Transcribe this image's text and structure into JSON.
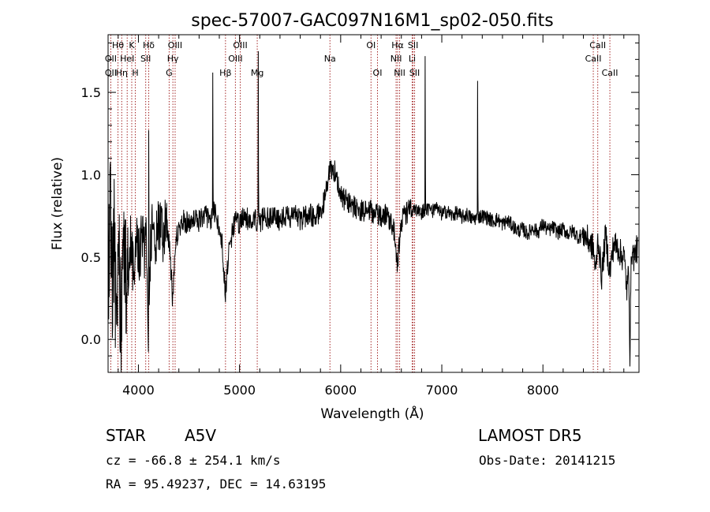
{
  "chart_data": {
    "type": "line",
    "title": "spec-57007-GAC097N16M1_sp02-050.fits",
    "xlabel": "Wavelength (Å)",
    "ylabel": "Flux (relative)",
    "xlim": [
      3700,
      8950
    ],
    "ylim": [
      -0.2,
      1.85
    ],
    "xticks": [
      4000,
      5000,
      6000,
      7000,
      8000
    ],
    "yticks": [
      0.0,
      0.5,
      1.0,
      1.5
    ],
    "ytick_labels": [
      "0.0",
      "0.5",
      "1.0",
      "1.5"
    ],
    "grid": false,
    "line_color": "#000000",
    "marker_color": "#a52a2a",
    "anchors": [
      [
        3700,
        0.35
      ],
      [
        3720,
        0.8
      ],
      [
        3740,
        0.3
      ],
      [
        3760,
        0.65
      ],
      [
        3780,
        0.05
      ],
      [
        3800,
        0.55
      ],
      [
        3830,
        0.15
      ],
      [
        3860,
        0.6
      ],
      [
        3890,
        0.28
      ],
      [
        3920,
        0.62
      ],
      [
        3950,
        0.4
      ],
      [
        3980,
        0.66
      ],
      [
        4010,
        0.5
      ],
      [
        4040,
        0.68
      ],
      [
        4060,
        0.55
      ],
      [
        4080,
        0.62
      ],
      [
        4101,
        -0.06
      ],
      [
        4120,
        0.55
      ],
      [
        4140,
        0.68
      ],
      [
        4160,
        0.58
      ],
      [
        4180,
        0.62
      ],
      [
        4200,
        0.7
      ],
      [
        4240,
        0.62
      ],
      [
        4280,
        0.7
      ],
      [
        4310,
        0.55
      ],
      [
        4340,
        0.22
      ],
      [
        4370,
        0.6
      ],
      [
        4400,
        0.68
      ],
      [
        4450,
        0.72
      ],
      [
        4500,
        0.7
      ],
      [
        4550,
        0.75
      ],
      [
        4600,
        0.72
      ],
      [
        4650,
        0.76
      ],
      [
        4700,
        0.72
      ],
      [
        4750,
        0.78
      ],
      [
        4800,
        0.66
      ],
      [
        4830,
        0.56
      ],
      [
        4861,
        0.27
      ],
      [
        4890,
        0.5
      ],
      [
        4920,
        0.62
      ],
      [
        4960,
        0.73
      ],
      [
        5000,
        0.7
      ],
      [
        5050,
        0.75
      ],
      [
        5100,
        0.72
      ],
      [
        5150,
        0.74
      ],
      [
        5200,
        0.7
      ],
      [
        5250,
        0.76
      ],
      [
        5300,
        0.73
      ],
      [
        5350,
        0.77
      ],
      [
        5400,
        0.72
      ],
      [
        5450,
        0.76
      ],
      [
        5500,
        0.73
      ],
      [
        5550,
        0.77
      ],
      [
        5600,
        0.72
      ],
      [
        5650,
        0.75
      ],
      [
        5700,
        0.76
      ],
      [
        5750,
        0.74
      ],
      [
        5800,
        0.78
      ],
      [
        5850,
        0.86
      ],
      [
        5880,
        1.01
      ],
      [
        5910,
        1.04
      ],
      [
        5940,
        1.02
      ],
      [
        5970,
        0.96
      ],
      [
        6000,
        0.88
      ],
      [
        6050,
        0.84
      ],
      [
        6100,
        0.82
      ],
      [
        6150,
        0.8
      ],
      [
        6200,
        0.78
      ],
      [
        6250,
        0.77
      ],
      [
        6300,
        0.78
      ],
      [
        6350,
        0.76
      ],
      [
        6400,
        0.75
      ],
      [
        6450,
        0.76
      ],
      [
        6500,
        0.72
      ],
      [
        6530,
        0.66
      ],
      [
        6563,
        0.45
      ],
      [
        6590,
        0.68
      ],
      [
        6620,
        0.74
      ],
      [
        6650,
        0.77
      ],
      [
        6700,
        0.79
      ],
      [
        6750,
        0.78
      ],
      [
        6800,
        0.77
      ],
      [
        6850,
        0.8
      ],
      [
        6900,
        0.78
      ],
      [
        6950,
        0.79
      ],
      [
        7000,
        0.76
      ],
      [
        7050,
        0.78
      ],
      [
        7100,
        0.75
      ],
      [
        7150,
        0.77
      ],
      [
        7200,
        0.74
      ],
      [
        7250,
        0.76
      ],
      [
        7300,
        0.73
      ],
      [
        7400,
        0.75
      ],
      [
        7450,
        0.74
      ],
      [
        7500,
        0.72
      ],
      [
        7550,
        0.73
      ],
      [
        7600,
        0.7
      ],
      [
        7650,
        0.72
      ],
      [
        7700,
        0.69
      ],
      [
        7750,
        0.66
      ],
      [
        7800,
        0.67
      ],
      [
        7850,
        0.64
      ],
      [
        7900,
        0.68
      ],
      [
        7950,
        0.65
      ],
      [
        8000,
        0.7
      ],
      [
        8050,
        0.66
      ],
      [
        8100,
        0.68
      ],
      [
        8150,
        0.65
      ],
      [
        8200,
        0.67
      ],
      [
        8250,
        0.64
      ],
      [
        8300,
        0.66
      ],
      [
        8350,
        0.62
      ],
      [
        8400,
        0.64
      ],
      [
        8450,
        0.6
      ],
      [
        8500,
        0.55
      ],
      [
        8520,
        0.4
      ],
      [
        8545,
        0.62
      ],
      [
        8580,
        0.38
      ],
      [
        8620,
        0.64
      ],
      [
        8660,
        0.4
      ],
      [
        8700,
        0.58
      ],
      [
        8750,
        0.55
      ],
      [
        8780,
        0.5
      ],
      [
        8800,
        0.52
      ],
      [
        8830,
        0.3
      ],
      [
        8850,
        0.42
      ],
      [
        8860,
        -0.1
      ],
      [
        8875,
        0.55
      ],
      [
        8900,
        0.5
      ],
      [
        8930,
        0.55
      ]
    ],
    "noise_regions": [
      {
        "x0": 3700,
        "x1": 3900,
        "amp": 0.38
      },
      {
        "x0": 3900,
        "x1": 4300,
        "amp": 0.18
      },
      {
        "x0": 4300,
        "x1": 6700,
        "amp": 0.07
      },
      {
        "x0": 6700,
        "x1": 8400,
        "amp": 0.045
      },
      {
        "x0": 8400,
        "x1": 8950,
        "amp": 0.09
      }
    ],
    "emission_spikes": [
      {
        "x": 4102,
        "y": 1.27
      },
      {
        "x": 4734,
        "y": 1.62
      },
      {
        "x": 5184,
        "y": 1.75
      },
      {
        "x": 6834,
        "y": 1.72
      },
      {
        "x": 7354,
        "y": 1.57
      }
    ],
    "line_markers": [
      {
        "x": 3727,
        "label": "OII",
        "row": 3
      },
      {
        "x": 3727,
        "label": "OII",
        "row": 2
      },
      {
        "x": 3798,
        "label": "Hθ",
        "row": 1
      },
      {
        "x": 3835,
        "label": "Hη",
        "row": 3
      },
      {
        "x": 3889,
        "label": "HeI",
        "row": 2
      },
      {
        "x": 3934,
        "label": "K",
        "row": 1
      },
      {
        "x": 3969,
        "label": "H",
        "row": 3
      },
      {
        "x": 4072,
        "label": "SII",
        "row": 2
      },
      {
        "x": 4102,
        "label": "Hδ",
        "row": 1
      },
      {
        "x": 4304,
        "label": "G",
        "row": 3
      },
      {
        "x": 4341,
        "label": "Hγ",
        "row": 2
      },
      {
        "x": 4363,
        "label": "OIII",
        "row": 1
      },
      {
        "x": 4861,
        "label": "Hβ",
        "row": 3
      },
      {
        "x": 4959,
        "label": "OIII",
        "row": 2
      },
      {
        "x": 5007,
        "label": "OIII",
        "row": 1
      },
      {
        "x": 5175,
        "label": "Mg",
        "row": 3
      },
      {
        "x": 5894,
        "label": "Na",
        "row": 2
      },
      {
        "x": 6300,
        "label": "OI",
        "row": 1
      },
      {
        "x": 6364,
        "label": "OI",
        "row": 3
      },
      {
        "x": 6548,
        "label": "NII",
        "row": 2
      },
      {
        "x": 6563,
        "label": "Hα",
        "row": 1
      },
      {
        "x": 6583,
        "label": "NII",
        "row": 3
      },
      {
        "x": 6707,
        "label": "Li",
        "row": 2
      },
      {
        "x": 6716,
        "label": "SII",
        "row": 1
      },
      {
        "x": 6731,
        "label": "SII",
        "row": 3
      },
      {
        "x": 8498,
        "label": "CaII",
        "row": 2
      },
      {
        "x": 8542,
        "label": "CaII",
        "row": 1
      },
      {
        "x": 8662,
        "label": "CaII",
        "row": 3
      }
    ]
  },
  "footer": {
    "class_label": "STAR",
    "subclass": "A5V",
    "survey": "LAMOST  DR5",
    "cz_text": "cz = -66.8 ± 254.1 km/s",
    "obs_date_text": "Obs-Date: 20141215",
    "coords_text": "RA =  95.49237, DEC =  14.63195"
  }
}
